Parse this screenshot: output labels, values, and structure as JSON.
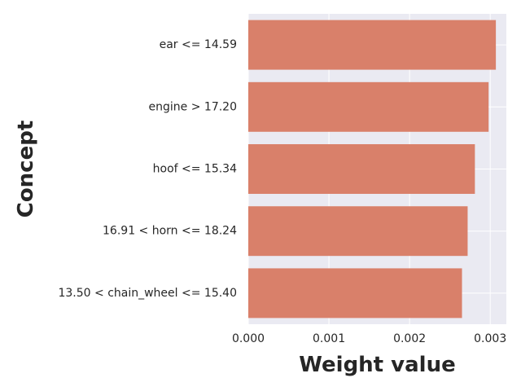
{
  "chart_data": {
    "type": "bar",
    "orientation": "horizontal",
    "categories": [
      "ear <= 14.59",
      "engine > 17.20",
      "hoof <= 15.34",
      "16.91 < horn <= 18.24",
      "13.50 < chain_wheel <= 15.40"
    ],
    "values": [
      0.00307,
      0.00298,
      0.00281,
      0.00272,
      0.00265
    ],
    "xlabel": "Weight value",
    "ylabel": "Concept",
    "xlim": [
      0,
      0.0032
    ],
    "xticks": [
      "0.000",
      "0.001",
      "0.002",
      "0.003"
    ],
    "xtick_values": [
      0,
      0.001,
      0.002,
      0.003
    ],
    "grid": true,
    "colors": {
      "bar": "#d9806a",
      "plot_background": "#eaeaf2",
      "grid": "#ffffff"
    }
  }
}
